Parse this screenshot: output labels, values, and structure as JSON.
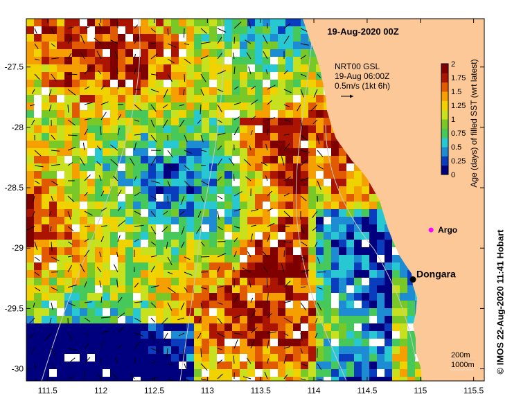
{
  "title": "19-Aug-2020 00Z",
  "current_legend": {
    "line1": "NRT00 GSL",
    "line2": "19-Aug 06:00Z",
    "line3": "0.5m/s (1kt 6h)"
  },
  "colorbar": {
    "label": "Age (days) of filled SST (wrt latest)",
    "ticks": [
      "0",
      "0.25",
      "0.5",
      "0.75",
      "1",
      "1.25",
      "1.5",
      "1.75",
      "2"
    ],
    "colors": [
      "#00007f",
      "#0a3cbe",
      "#1e8cd2",
      "#28c8d2",
      "#46c85a",
      "#78c828",
      "#c8e11e",
      "#f0d200",
      "#f5a000",
      "#e15a00",
      "#aa1400",
      "#7f0000"
    ]
  },
  "axes": {
    "lon_ticks": [
      "111.5",
      "112",
      "112.5",
      "113",
      "113.5",
      "114",
      "114.5",
      "115",
      "115.5"
    ],
    "lat_ticks": [
      "-27.5",
      "-28",
      "-28.5",
      "-29",
      "-29.5",
      "-30"
    ],
    "lon_range": [
      111.3,
      115.6
    ],
    "lat_range": [
      -27.1,
      -30.1
    ]
  },
  "places": [
    {
      "name": "Dongara",
      "lon": 114.93,
      "lat": -29.26,
      "marker": "black-dot"
    },
    {
      "name": "Argo",
      "lon": 115.1,
      "lat": -28.85,
      "marker": "magenta-star"
    }
  ],
  "depth_legend": {
    "line1": "200m",
    "line2": "1000m"
  },
  "credit": "© IMOS 22-Aug-2020 11:41 Hobart",
  "colors": {
    "land": "#fcc898",
    "frame": "#000000",
    "contour": "#c8c8c8",
    "argo": "#ff00ff"
  }
}
